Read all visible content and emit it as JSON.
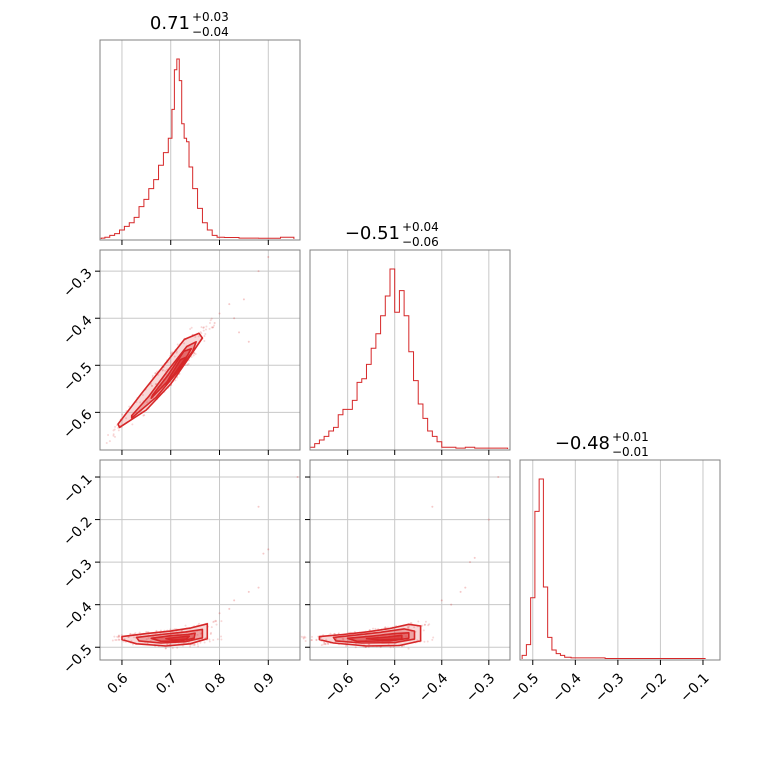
{
  "chart_data": {
    "type": "corner",
    "color": "#d62728",
    "parameters": [
      {
        "title_main": "0.71",
        "title_plus": "+0.03",
        "title_minus": "−0.04",
        "range": [
          0.555,
          0.965
        ],
        "ticks": [
          0.6,
          0.7,
          0.8,
          0.9
        ],
        "tick_labels": [
          "0.6",
          "0.7",
          "0.8",
          "0.9"
        ],
        "hist_x": [
          0.56,
          0.57,
          0.58,
          0.59,
          0.6,
          0.61,
          0.62,
          0.63,
          0.64,
          0.65,
          0.66,
          0.67,
          0.68,
          0.69,
          0.7,
          0.705,
          0.71,
          0.715,
          0.72,
          0.725,
          0.73,
          0.735,
          0.74,
          0.75,
          0.76,
          0.77,
          0.78,
          0.79,
          0.8,
          0.82,
          0.86,
          0.9,
          0.95
        ],
        "hist_y": [
          0.005,
          0.01,
          0.02,
          0.03,
          0.05,
          0.07,
          0.09,
          0.12,
          0.18,
          0.22,
          0.28,
          0.33,
          0.41,
          0.48,
          0.56,
          0.72,
          0.94,
          1.0,
          0.88,
          0.64,
          0.56,
          0.54,
          0.4,
          0.28,
          0.17,
          0.09,
          0.05,
          0.02,
          0.01,
          0.008,
          0.005,
          0.004,
          0.01
        ]
      },
      {
        "title_main": "−0.51",
        "title_plus": "+0.04",
        "title_minus": "−0.06",
        "range": [
          -0.68,
          -0.255
        ],
        "ticks": [
          -0.6,
          -0.5,
          -0.4,
          -0.3
        ],
        "tick_labels": [
          "−0.6",
          "−0.5",
          "−0.4",
          "−0.3"
        ],
        "hist_x": [
          -0.675,
          -0.665,
          -0.655,
          -0.645,
          -0.635,
          -0.625,
          -0.615,
          -0.605,
          -0.595,
          -0.585,
          -0.575,
          -0.565,
          -0.555,
          -0.545,
          -0.535,
          -0.525,
          -0.515,
          -0.505,
          -0.495,
          -0.485,
          -0.475,
          -0.465,
          -0.455,
          -0.445,
          -0.435,
          -0.425,
          -0.415,
          -0.405,
          -0.395,
          -0.38,
          -0.36,
          -0.34,
          -0.32,
          -0.3,
          -0.28,
          -0.265
        ],
        "hist_y": [
          0.01,
          0.03,
          0.05,
          0.07,
          0.1,
          0.12,
          0.19,
          0.22,
          0.22,
          0.27,
          0.37,
          0.39,
          0.47,
          0.56,
          0.64,
          0.74,
          0.85,
          1.0,
          0.76,
          0.88,
          0.74,
          0.54,
          0.38,
          0.25,
          0.17,
          0.1,
          0.07,
          0.04,
          0.01,
          0.01,
          0.005,
          0.01,
          0.005,
          0.005,
          0.005,
          0.005
        ]
      },
      {
        "title_main": "−0.48",
        "title_plus": "+0.01",
        "title_minus": "−0.01",
        "range": [
          -0.53,
          -0.06
        ],
        "ticks": [
          -0.5,
          -0.4,
          -0.3,
          -0.2,
          -0.1
        ],
        "tick_labels": [
          "−0.5",
          "−0.4",
          "−0.3",
          "−0.2",
          "−0.1"
        ],
        "hist_x": [
          -0.52,
          -0.51,
          -0.5,
          -0.49,
          -0.48,
          -0.47,
          -0.46,
          -0.45,
          -0.44,
          -0.43,
          -0.42,
          -0.4,
          -0.36,
          -0.3,
          -0.2,
          -0.1
        ],
        "hist_y": [
          0.02,
          0.08,
          0.34,
          0.82,
          1.0,
          0.4,
          0.12,
          0.05,
          0.03,
          0.02,
          0.01,
          0.006,
          0.006,
          0.003,
          0.003,
          0.003
        ]
      }
    ],
    "contours": [
      {
        "x_param": 0,
        "y_param": 1,
        "levels": [
          [
            [
              0.595,
              -0.632
            ],
            [
              0.65,
              -0.595
            ],
            [
              0.7,
              -0.54
            ],
            [
              0.735,
              -0.488
            ],
            [
              0.765,
              -0.442
            ],
            [
              0.758,
              -0.432
            ],
            [
              0.728,
              -0.445
            ],
            [
              0.69,
              -0.495
            ],
            [
              0.64,
              -0.56
            ],
            [
              0.592,
              -0.625
            ]
          ],
          [
            [
              0.62,
              -0.612
            ],
            [
              0.67,
              -0.568
            ],
            [
              0.715,
              -0.513
            ],
            [
              0.745,
              -0.47
            ],
            [
              0.752,
              -0.45
            ],
            [
              0.733,
              -0.46
            ],
            [
              0.695,
              -0.51
            ],
            [
              0.655,
              -0.566
            ],
            [
              0.62,
              -0.607
            ]
          ],
          [
            [
              0.66,
              -0.57
            ],
            [
              0.705,
              -0.522
            ],
            [
              0.735,
              -0.478
            ],
            [
              0.742,
              -0.465
            ],
            [
              0.727,
              -0.47
            ],
            [
              0.695,
              -0.52
            ],
            [
              0.663,
              -0.563
            ]
          ],
          [
            [
              0.69,
              -0.54
            ],
            [
              0.72,
              -0.505
            ],
            [
              0.732,
              -0.483
            ],
            [
              0.72,
              -0.488
            ],
            [
              0.698,
              -0.525
            ]
          ]
        ]
      },
      {
        "x_param": 0,
        "y_param": 2,
        "levels": [
          [
            [
              0.6,
              -0.475
            ],
            [
              0.65,
              -0.468
            ],
            [
              0.7,
              -0.462
            ],
            [
              0.74,
              -0.455
            ],
            [
              0.775,
              -0.445
            ],
            [
              0.775,
              -0.48
            ],
            [
              0.74,
              -0.492
            ],
            [
              0.69,
              -0.497
            ],
            [
              0.63,
              -0.492
            ],
            [
              0.6,
              -0.482
            ]
          ],
          [
            [
              0.63,
              -0.477
            ],
            [
              0.68,
              -0.47
            ],
            [
              0.73,
              -0.464
            ],
            [
              0.765,
              -0.458
            ],
            [
              0.765,
              -0.478
            ],
            [
              0.73,
              -0.487
            ],
            [
              0.68,
              -0.49
            ],
            [
              0.635,
              -0.485
            ]
          ],
          [
            [
              0.66,
              -0.479
            ],
            [
              0.7,
              -0.473
            ],
            [
              0.735,
              -0.47
            ],
            [
              0.75,
              -0.467
            ],
            [
              0.748,
              -0.479
            ],
            [
              0.72,
              -0.485
            ],
            [
              0.68,
              -0.486
            ]
          ],
          [
            [
              0.69,
              -0.48
            ],
            [
              0.72,
              -0.476
            ],
            [
              0.738,
              -0.474
            ],
            [
              0.732,
              -0.481
            ],
            [
              0.705,
              -0.483
            ]
          ]
        ]
      },
      {
        "x_param": 1,
        "y_param": 2,
        "levels": [
          [
            [
              -0.66,
              -0.475
            ],
            [
              -0.61,
              -0.47
            ],
            [
              -0.56,
              -0.464
            ],
            [
              -0.51,
              -0.456
            ],
            [
              -0.47,
              -0.446
            ],
            [
              -0.445,
              -0.45
            ],
            [
              -0.445,
              -0.485
            ],
            [
              -0.49,
              -0.496
            ],
            [
              -0.56,
              -0.497
            ],
            [
              -0.63,
              -0.49
            ],
            [
              -0.66,
              -0.482
            ]
          ],
          [
            [
              -0.63,
              -0.477
            ],
            [
              -0.58,
              -0.471
            ],
            [
              -0.53,
              -0.465
            ],
            [
              -0.48,
              -0.457
            ],
            [
              -0.458,
              -0.462
            ],
            [
              -0.458,
              -0.481
            ],
            [
              -0.5,
              -0.489
            ],
            [
              -0.57,
              -0.49
            ],
            [
              -0.625,
              -0.485
            ]
          ],
          [
            [
              -0.6,
              -0.479
            ],
            [
              -0.55,
              -0.474
            ],
            [
              -0.5,
              -0.468
            ],
            [
              -0.47,
              -0.466
            ],
            [
              -0.47,
              -0.479
            ],
            [
              -0.51,
              -0.485
            ],
            [
              -0.58,
              -0.486
            ]
          ],
          [
            [
              -0.56,
              -0.48
            ],
            [
              -0.515,
              -0.476
            ],
            [
              -0.485,
              -0.472
            ],
            [
              -0.485,
              -0.481
            ],
            [
              -0.53,
              -0.483
            ]
          ]
        ]
      }
    ],
    "scatter": [
      {
        "x_param": 0,
        "y_param": 1,
        "outliers": [
          [
            0.82,
            -0.37
          ],
          [
            0.85,
            -0.36
          ],
          [
            0.88,
            -0.3
          ],
          [
            0.86,
            -0.45
          ],
          [
            0.83,
            -0.4
          ],
          [
            0.8,
            -0.39
          ],
          [
            0.79,
            -0.41
          ],
          [
            0.9,
            -0.27
          ],
          [
            0.84,
            -0.43
          ]
        ]
      },
      {
        "x_param": 0,
        "y_param": 2,
        "outliers": [
          [
            0.82,
            -0.41
          ],
          [
            0.8,
            -0.42
          ],
          [
            0.86,
            -0.37
          ],
          [
            0.88,
            -0.36
          ],
          [
            0.9,
            -0.27
          ],
          [
            0.89,
            -0.28
          ],
          [
            0.88,
            -0.17
          ],
          [
            0.96,
            -0.1
          ],
          [
            0.83,
            -0.39
          ]
        ]
      },
      {
        "x_param": 1,
        "y_param": 2,
        "outliers": [
          [
            -0.4,
            -0.39
          ],
          [
            -0.38,
            -0.4
          ],
          [
            -0.36,
            -0.37
          ],
          [
            -0.34,
            -0.3
          ],
          [
            -0.33,
            -0.29
          ],
          [
            -0.3,
            -0.2
          ],
          [
            -0.42,
            -0.17
          ],
          [
            -0.28,
            -0.1
          ],
          [
            -0.35,
            -0.36
          ]
        ]
      }
    ]
  }
}
